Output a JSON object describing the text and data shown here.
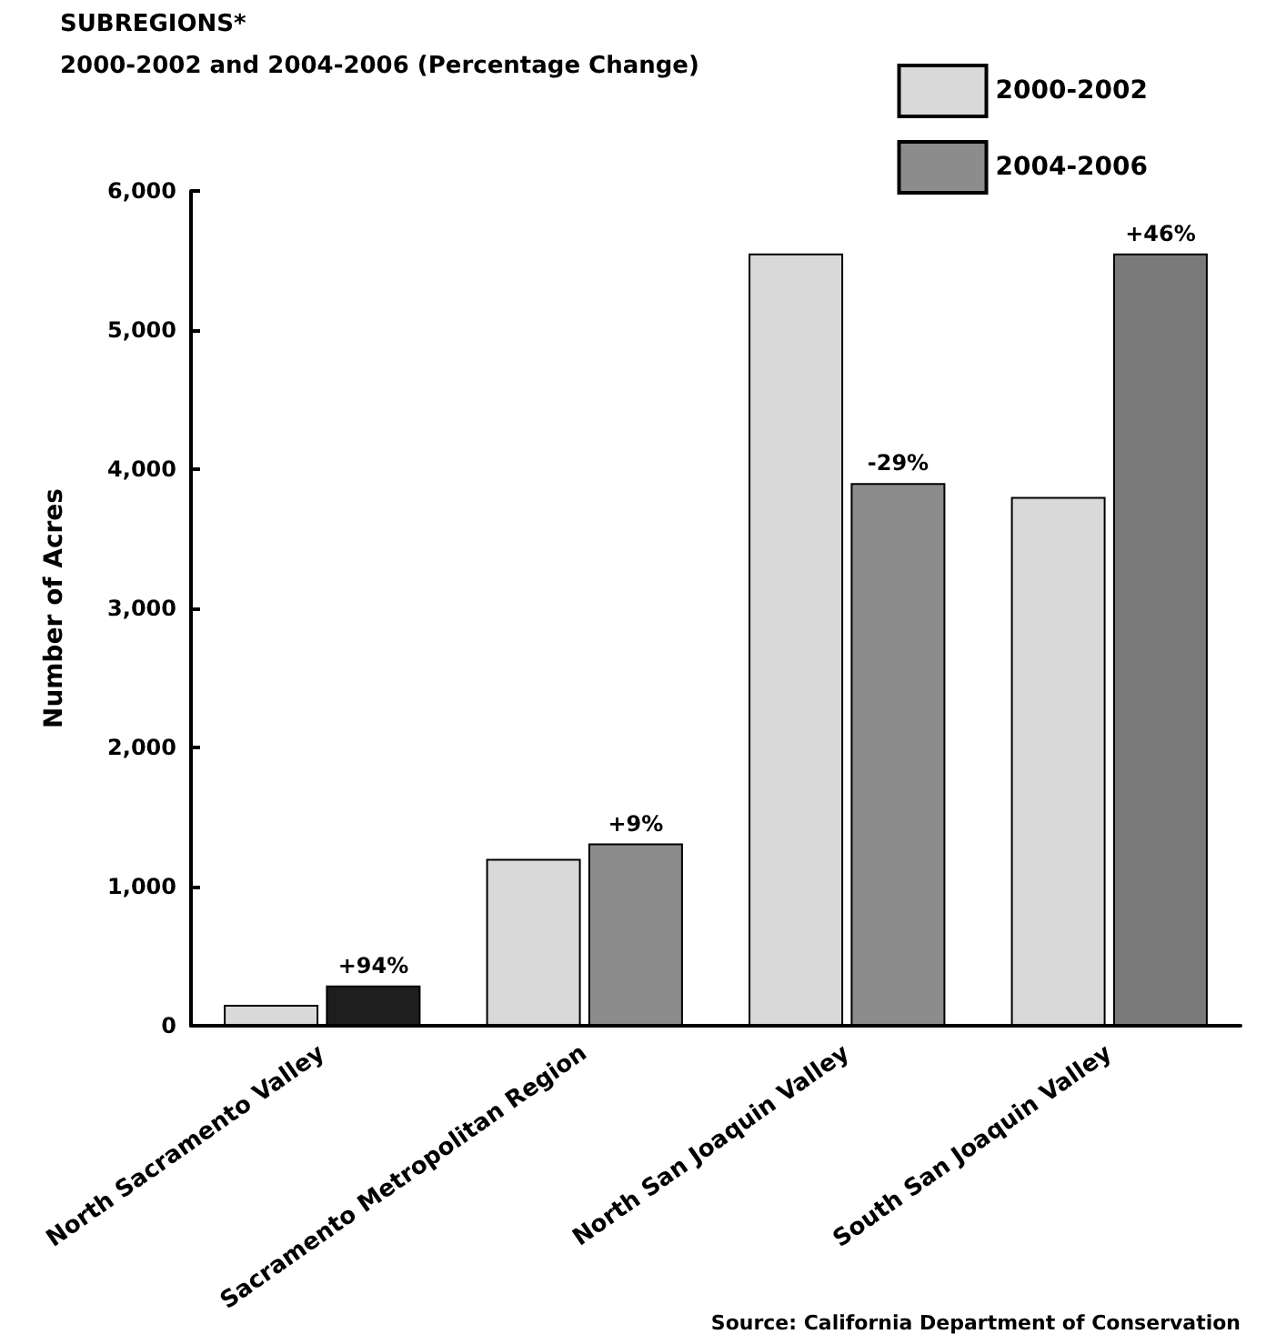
{
  "chart_data": {
    "type": "bar",
    "title": "SUBREGIONS*",
    "subtitle": "2000-2002 and 2004-2006 (Percentage Change)",
    "ylabel": "Number of Acres",
    "categories": [
      "North Sacramento Valley",
      "Sacramento Metropolitan Region",
      "North San Joaquin Valley",
      "South San Joaquin Valley"
    ],
    "series": [
      {
        "name": "2000-2002",
        "color": "#d9d9d9",
        "values": [
          150,
          1200,
          5550,
          3800
        ]
      },
      {
        "name": "2004-2006",
        "color": "#8c8c8c",
        "colors": [
          "#1e1e1e",
          "#8c8c8c",
          "#8c8c8c",
          "#7a7a7a"
        ],
        "values": [
          290,
          1310,
          3900,
          5550
        ]
      }
    ],
    "ylim": [
      0,
      6000
    ],
    "yticks": [
      {
        "value": 0,
        "label": "0"
      },
      {
        "value": 1000,
        "label": "1,000"
      },
      {
        "value": 2000,
        "label": "2,000"
      },
      {
        "value": 3000,
        "label": "3,000"
      },
      {
        "value": 4000,
        "label": "4,000"
      },
      {
        "value": 5000,
        "label": "5,000"
      },
      {
        "value": 6000,
        "label": "6,000"
      }
    ],
    "grid": false,
    "legend": "top right",
    "annotations": [
      {
        "text": "+94%",
        "x": "North Sacramento Valley",
        "y": 290
      },
      {
        "text": "+9%",
        "x": "Sacramento Metropolitan Region",
        "y": 1310
      },
      {
        "text": "-29%",
        "x": "North San Joaquin Valley",
        "y": 3900
      },
      {
        "text": "+46%",
        "x": "South San Joaquin Valley",
        "y": 5550
      },
      "Source: California Department of Conservation"
    ]
  }
}
